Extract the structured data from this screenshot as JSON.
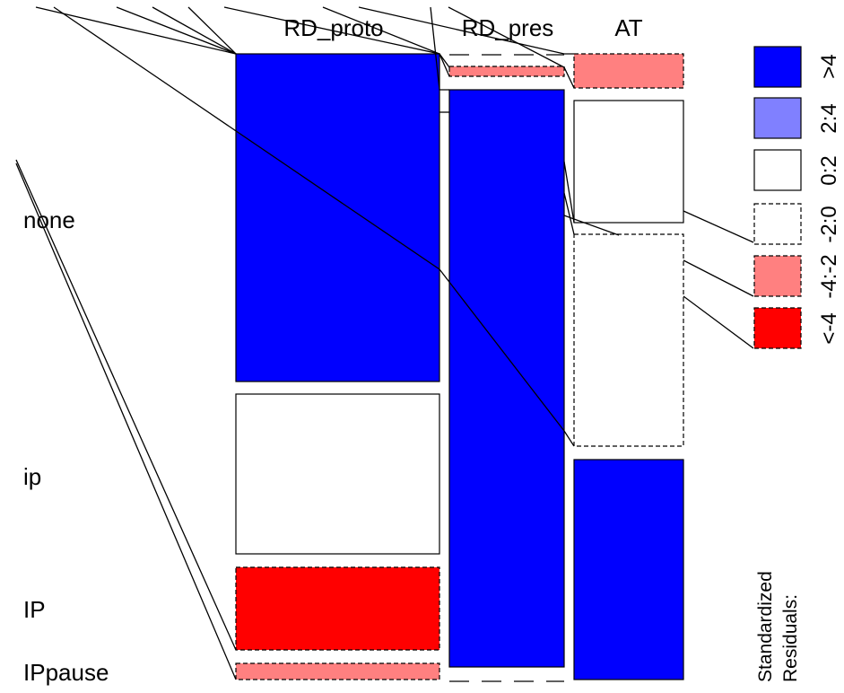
{
  "chart_data": {
    "type": "mosaic",
    "columns": [
      "RD_proto",
      "RD_pres",
      "AT"
    ],
    "rows": [
      "none",
      "ip",
      "IP",
      "IPpause"
    ],
    "cells": [
      {
        "column": "RD_proto",
        "row": "none",
        "residual_class": ">4"
      },
      {
        "column": "RD_proto",
        "row": "ip",
        "residual_class": "0:2"
      },
      {
        "column": "RD_proto",
        "row": "IP",
        "residual_class": "<-4"
      },
      {
        "column": "RD_proto",
        "row": "IPpause",
        "residual_class": "-4:-2"
      },
      {
        "column": "RD_pres",
        "row": "none",
        "residual_class": ">4"
      },
      {
        "column": "RD_pres",
        "row": "ip",
        "residual_class": "-4:-2"
      },
      {
        "column": "RD_pres",
        "row": "IP",
        "residual_class": "-2:0"
      },
      {
        "column": "RD_pres",
        "row": "IPpause",
        "residual_class": "-2:0"
      },
      {
        "column": "AT",
        "row": "none",
        "residual_class": "-4:-2"
      },
      {
        "column": "AT",
        "row": "ip",
        "residual_class": "0:2"
      },
      {
        "column": "AT",
        "row": "IP",
        "residual_class": "-2:0"
      },
      {
        "column": "AT",
        "row": "IPpause",
        "residual_class": ">4"
      }
    ],
    "legend": {
      "title": "Standardized\nResiduals:",
      "title_lines": [
        "Standardized",
        "Residuals:"
      ],
      "placement": "right",
      "items": [
        {
          "label": ">4",
          "fill": "#0000ff",
          "dashed": false
        },
        {
          "label": "2:4",
          "fill": "#8080ff",
          "dashed": false
        },
        {
          "label": "0:2",
          "fill": "#ffffff",
          "dashed": false
        },
        {
          "label": "-2:0",
          "fill": "#ffffff",
          "dashed": true
        },
        {
          "label": "-4:-2",
          "fill": "#ff8080",
          "dashed": true
        },
        {
          "label": "<-4",
          "fill": "#ff0000",
          "dashed": true
        }
      ]
    }
  }
}
